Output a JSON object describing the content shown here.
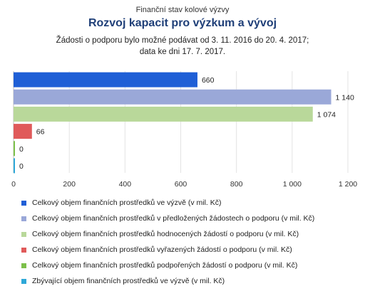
{
  "header": {
    "pretitle": "Finanční stav kolové výzvy",
    "title": "Rozvoj kapacit pro výzkum a vývoj",
    "subtitle_line1": "Žádosti o podporu bylo možné  podávat od 3. 11. 2016 do  20. 4. 2017;",
    "subtitle_line2": "data ke dni 17. 7. 2017."
  },
  "chart_data": {
    "type": "bar",
    "orientation": "horizontal",
    "grid": true,
    "xlim": [
      0,
      1200
    ],
    "x_ticks": [
      0,
      200,
      400,
      600,
      800,
      1000,
      1200
    ],
    "x_tick_labels": [
      "0",
      "200",
      "400",
      "600",
      "800",
      "1 000",
      "1 200"
    ],
    "series": [
      {
        "name": "Celkový objem finančních prostředků ve výzvě (v mil. Kč)",
        "value": 660,
        "label": "660",
        "color": "#1f5fd6"
      },
      {
        "name": "Celkový objem finančních prostředků v předložených žádostech o podporu (v mil. Kč)",
        "value": 1140,
        "label": "1 140",
        "color": "#9aa8d8"
      },
      {
        "name": "Celkový objem finančních prostředků hodnocených žádostí o podporu (v mil. Kč)",
        "value": 1074,
        "label": "1 074",
        "color": "#b9d89a"
      },
      {
        "name": "Celkový objem finančních prostředků vyřazených žádostí o podporu (v mil. Kč)",
        "value": 66,
        "label": "66",
        "color": "#e05a5a"
      },
      {
        "name": "Celkový objem finančních prostředků podpořených žádostí o podporu (v mil. Kč)",
        "value": 0,
        "label": "0",
        "color": "#7cc04a"
      },
      {
        "name": "Zbývající objem finančních prostředků ve výzvě (v mil. Kč)",
        "value": 0,
        "label": "0",
        "color": "#2ea8d8"
      }
    ],
    "legend_position": "bottom"
  }
}
